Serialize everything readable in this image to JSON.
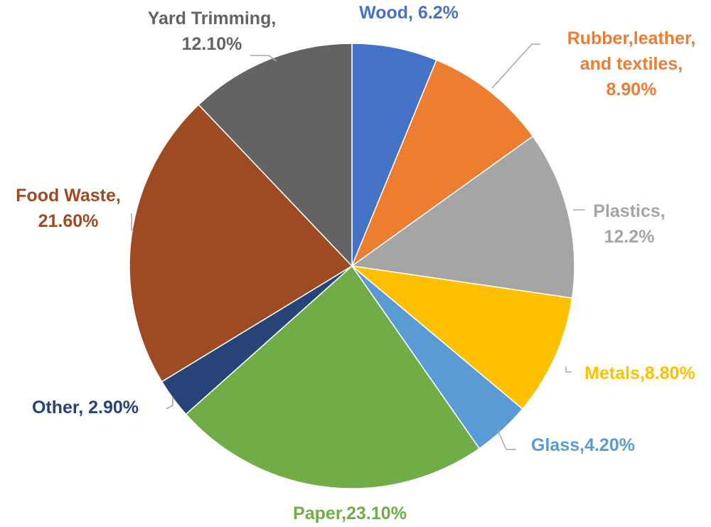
{
  "chart_data": {
    "type": "pie",
    "start_angle_deg": 0,
    "direction": "clockwise",
    "slices": [
      {
        "lines": [
          "Wood, 6.2%"
        ],
        "value": 6.2,
        "color": "#4472c4"
      },
      {
        "lines": [
          "Rubber,leather,",
          "and textiles,",
          "8.90%"
        ],
        "value": 8.9,
        "color": "#ed7d31"
      },
      {
        "lines": [
          "Plastics,",
          "12.2%"
        ],
        "value": 12.2,
        "color": "#a5a5a5"
      },
      {
        "lines": [
          "Metals,8.80%"
        ],
        "value": 8.8,
        "color": "#ffc000"
      },
      {
        "lines": [
          "Glass,4.20%"
        ],
        "value": 4.2,
        "color": "#5b9bd5"
      },
      {
        "lines": [
          "Paper,23.10%"
        ],
        "value": 23.1,
        "color": "#70ad47"
      },
      {
        "lines": [
          "Other, 2.90%"
        ],
        "value": 2.9,
        "color": "#264478"
      },
      {
        "lines": [
          "Food Waste,",
          "21.60%"
        ],
        "value": 21.6,
        "color": "#9e4a23"
      },
      {
        "lines": [
          "Yard Trimming,",
          "12.10%"
        ],
        "value": 12.1,
        "color": "#636363"
      }
    ]
  }
}
